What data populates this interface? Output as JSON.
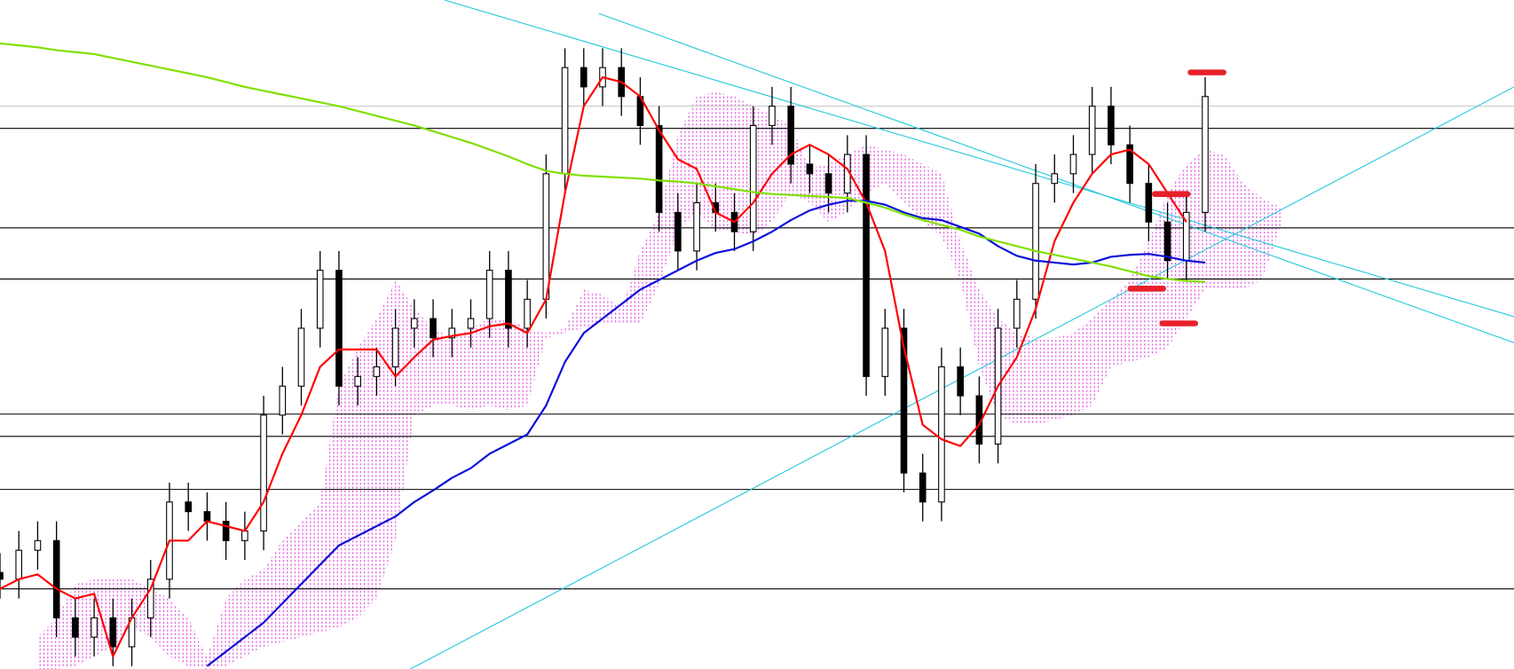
{
  "chart_data": {
    "type": "candlestick",
    "xlim": [
      0,
      80.4
    ],
    "ylim": [
      0,
      693
    ],
    "up_color": "#ffffff",
    "down_color": "#000000",
    "wick_color": "#000000",
    "open": [
      100,
      93,
      123,
      133,
      53,
      33,
      53,
      23,
      53,
      93,
      173,
      163,
      153,
      133,
      143,
      263,
      293,
      353,
      413,
      293,
      303,
      313,
      353,
      363,
      343,
      353,
      363,
      413,
      353,
      383,
      513,
      623,
      603,
      623,
      593,
      563,
      473,
      433,
      483,
      473,
      453,
      563,
      583,
      523,
      513,
      493,
      533,
      303,
      353,
      203,
      173,
      313,
      283,
      233,
      353,
      383,
      503,
      513,
      533,
      583,
      543,
      503,
      463,
      423,
      473
    ],
    "high": [
      120,
      143,
      153,
      153,
      73,
      73,
      73,
      73,
      113,
      193,
      193,
      183,
      173,
      163,
      283,
      313,
      373,
      433,
      433,
      323,
      333,
      373,
      383,
      383,
      373,
      383,
      433,
      433,
      403,
      533,
      643,
      643,
      643,
      643,
      613,
      583,
      493,
      503,
      503,
      493,
      583,
      603,
      603,
      543,
      533,
      553,
      553,
      373,
      373,
      223,
      333,
      333,
      303,
      373,
      403,
      523,
      533,
      553,
      603,
      603,
      563,
      523,
      483,
      493,
      613
    ],
    "low": [
      73,
      73,
      103,
      33,
      13,
      13,
      3,
      3,
      33,
      73,
      143,
      133,
      113,
      113,
      123,
      243,
      273,
      333,
      273,
      273,
      283,
      293,
      333,
      323,
      323,
      333,
      343,
      333,
      333,
      363,
      493,
      583,
      583,
      573,
      543,
      453,
      413,
      413,
      453,
      433,
      433,
      543,
      503,
      493,
      473,
      473,
      283,
      283,
      183,
      153,
      153,
      263,
      213,
      213,
      333,
      363,
      483,
      493,
      513,
      523,
      483,
      443,
      403,
      403,
      453
    ],
    "close": [
      93,
      123,
      133,
      53,
      33,
      53,
      23,
      53,
      93,
      173,
      163,
      153,
      133,
      143,
      263,
      293,
      353,
      413,
      293,
      303,
      313,
      353,
      363,
      343,
      353,
      363,
      413,
      353,
      383,
      513,
      623,
      603,
      623,
      593,
      563,
      473,
      433,
      483,
      473,
      453,
      563,
      583,
      523,
      513,
      493,
      533,
      303,
      353,
      203,
      173,
      313,
      283,
      233,
      353,
      383,
      503,
      513,
      533,
      583,
      543,
      503,
      463,
      423,
      473,
      593
    ],
    "series": [
      {
        "color": "#ff0000",
        "values": [
          83,
          93,
          98,
          83,
          73,
          78,
          13,
          53,
          83,
          133,
          133,
          153,
          148,
          143,
          173,
          223,
          263,
          313,
          331,
          331,
          331,
          303,
          323,
          341,
          345,
          348,
          355,
          358,
          348,
          383,
          493,
          583,
          613,
          608,
          593,
          558,
          528,
          518,
          473,
          463,
          483,
          513,
          533,
          543,
          533,
          518,
          483,
          433,
          333,
          253,
          238,
          231,
          253,
          293,
          323,
          373,
          443,
          483,
          513,
          533,
          538,
          523,
          493,
          463,
          null
        ]
      },
      {
        "color": "#0a10d8",
        "values": [
          null,
          null,
          null,
          null,
          null,
          null,
          null,
          null,
          null,
          null,
          null,
          3,
          18,
          33,
          48,
          68,
          88,
          108,
          128,
          138,
          148,
          158,
          173,
          185,
          198,
          208,
          223,
          233,
          243,
          273,
          318,
          348,
          363,
          378,
          393,
          403,
          413,
          423,
          431,
          435,
          443,
          453,
          465,
          475,
          481,
          485,
          485,
          481,
          473,
          467,
          465,
          458,
          451,
          438,
          428,
          423,
          421,
          419,
          421,
          427,
          429,
          430,
          427,
          423,
          421
        ]
      },
      {
        "color": "#7fe000",
        "values": [
          648,
          646,
          644,
          641,
          639,
          637,
          633,
          629,
          625,
          621,
          617,
          613,
          608,
          603,
          599,
          595,
          591,
          587,
          583,
          578,
          573,
          568,
          563,
          557,
          551,
          545,
          538,
          531,
          523,
          516,
          513,
          511,
          510,
          509,
          508,
          506,
          505,
          503,
          500,
          497,
          494,
          492,
          491,
          490,
          489,
          488,
          483,
          478,
          471,
          465,
          460,
          455,
          448,
          443,
          438,
          433,
          429,
          425,
          421,
          417,
          412,
          407,
          404,
          402,
          401
        ]
      }
    ],
    "cloud": {
      "color": "#e040e0",
      "upper": [
        null,
        null,
        33,
        53,
        88,
        93,
        93,
        93,
        83,
        73,
        53,
        13,
        73,
        93,
        103,
        133,
        153,
        173,
        293,
        333,
        363,
        403,
        373,
        353,
        343,
        353,
        363,
        363,
        353,
        348,
        353,
        393,
        388,
        373,
        433,
        473,
        553,
        593,
        598,
        593,
        583,
        573,
        563,
        518,
        523,
        533,
        543,
        538,
        533,
        523,
        513,
        443,
        393,
        363,
        348,
        343,
        343,
        348,
        363,
        383,
        403,
        443,
        493,
        523,
        538,
        533,
        503,
        488,
        478
      ],
      "lower": [
        null,
        null,
        0,
        0,
        3,
        13,
        23,
        43,
        33,
        13,
        3,
        0,
        3,
        13,
        23,
        28,
        33,
        38,
        43,
        53,
        73,
        133,
        263,
        273,
        273,
        268,
        273,
        268,
        273,
        343,
        348,
        353,
        358,
        358,
        358,
        398,
        453,
        473,
        453,
        453,
        448,
        463,
        493,
        483,
        463,
        473,
        493,
        503,
        483,
        463,
        448,
        403,
        313,
        263,
        253,
        253,
        258,
        263,
        273,
        313,
        318,
        323,
        333,
        363,
        393,
        393,
        393,
        403,
        458
      ]
    },
    "levels": [
      560,
      457,
      404,
      264,
      241,
      186,
      83
    ],
    "level_color": "#000000",
    "guide_levels": [
      583
    ],
    "guide_color": "#c8c8c8",
    "trendline_color": "#22c8dc",
    "trendlines": [
      {
        "x": [
          23.6,
          80.4
        ],
        "values": [
          693,
          365
        ]
      },
      {
        "x": [
          31.8,
          80.4
        ],
        "values": [
          679,
          338
        ]
      },
      {
        "x": [
          21.8,
          80.4
        ],
        "values": [
          0,
          603
        ]
      }
    ],
    "markers": {
      "color": "#e8202a",
      "x": [
        64.1,
        62.2,
        60.9,
        62.6
      ],
      "values": [
        618,
        492,
        394,
        358
      ]
    }
  }
}
